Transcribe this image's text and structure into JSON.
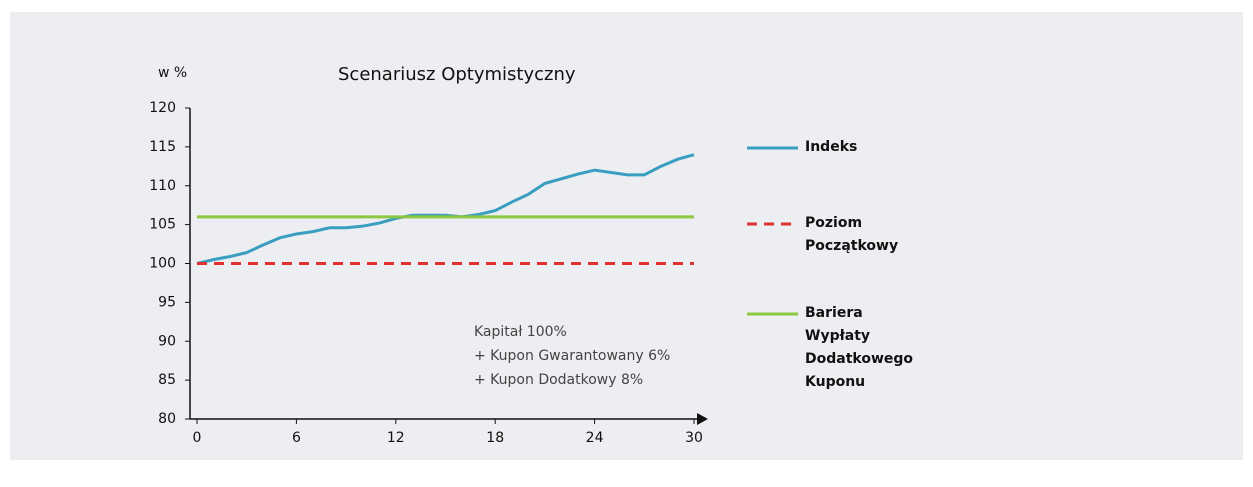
{
  "chart_data": {
    "type": "line",
    "title": "Scenariusz  Optymistyczny",
    "y_label": "w %",
    "x": [
      0,
      1,
      2,
      3,
      4,
      5,
      6,
      7,
      8,
      9,
      10,
      11,
      12,
      13,
      14,
      15,
      16,
      17,
      18,
      19,
      20,
      21,
      22,
      23,
      24,
      25,
      26,
      27,
      28,
      29,
      30
    ],
    "series": [
      {
        "name": "Indeks",
        "color": "#3a9ec0",
        "dashed": false,
        "values": [
          100,
          100.5,
          100.9,
          101.4,
          102.4,
          103.3,
          103.8,
          104.1,
          104.6,
          104.6,
          104.8,
          105.2,
          105.8,
          106.2,
          106.2,
          106.2,
          106.0,
          106.3,
          106.8,
          107.9,
          108.9,
          110.3,
          110.9,
          111.5,
          112,
          111.7,
          111.4,
          111.4,
          112.5,
          113.4,
          114
        ]
      },
      {
        "name": "Poziom Początkowy",
        "color": "#e03030",
        "dashed": true,
        "values": [
          100,
          100,
          100,
          100,
          100,
          100,
          100,
          100,
          100,
          100,
          100,
          100,
          100,
          100,
          100,
          100,
          100,
          100,
          100,
          100,
          100,
          100,
          100,
          100,
          100,
          100,
          100,
          100,
          100,
          100,
          100
        ]
      },
      {
        "name": "Bariera Wypłaty Dodatkowego Kuponu",
        "color": "#8dc63f",
        "dashed": false,
        "values": [
          106,
          106,
          106,
          106,
          106,
          106,
          106,
          106,
          106,
          106,
          106,
          106,
          106,
          106,
          106,
          106,
          106,
          106,
          106,
          106,
          106,
          106,
          106,
          106,
          106,
          106,
          106,
          106,
          106,
          106,
          106
        ]
      }
    ],
    "annotations": [
      "Kapitał 100%",
      "+ Kupon Gwarantowany 6%",
      "+ Kupon Dodatkowy 8%"
    ],
    "xlim": [
      0,
      30
    ],
    "xticks": [
      0,
      6,
      12,
      18,
      24,
      30
    ],
    "ylim": [
      80,
      120
    ],
    "yticks": [
      80,
      85,
      90,
      95,
      100,
      105,
      110,
      115,
      120
    ],
    "grid": false,
    "legend": "right"
  }
}
